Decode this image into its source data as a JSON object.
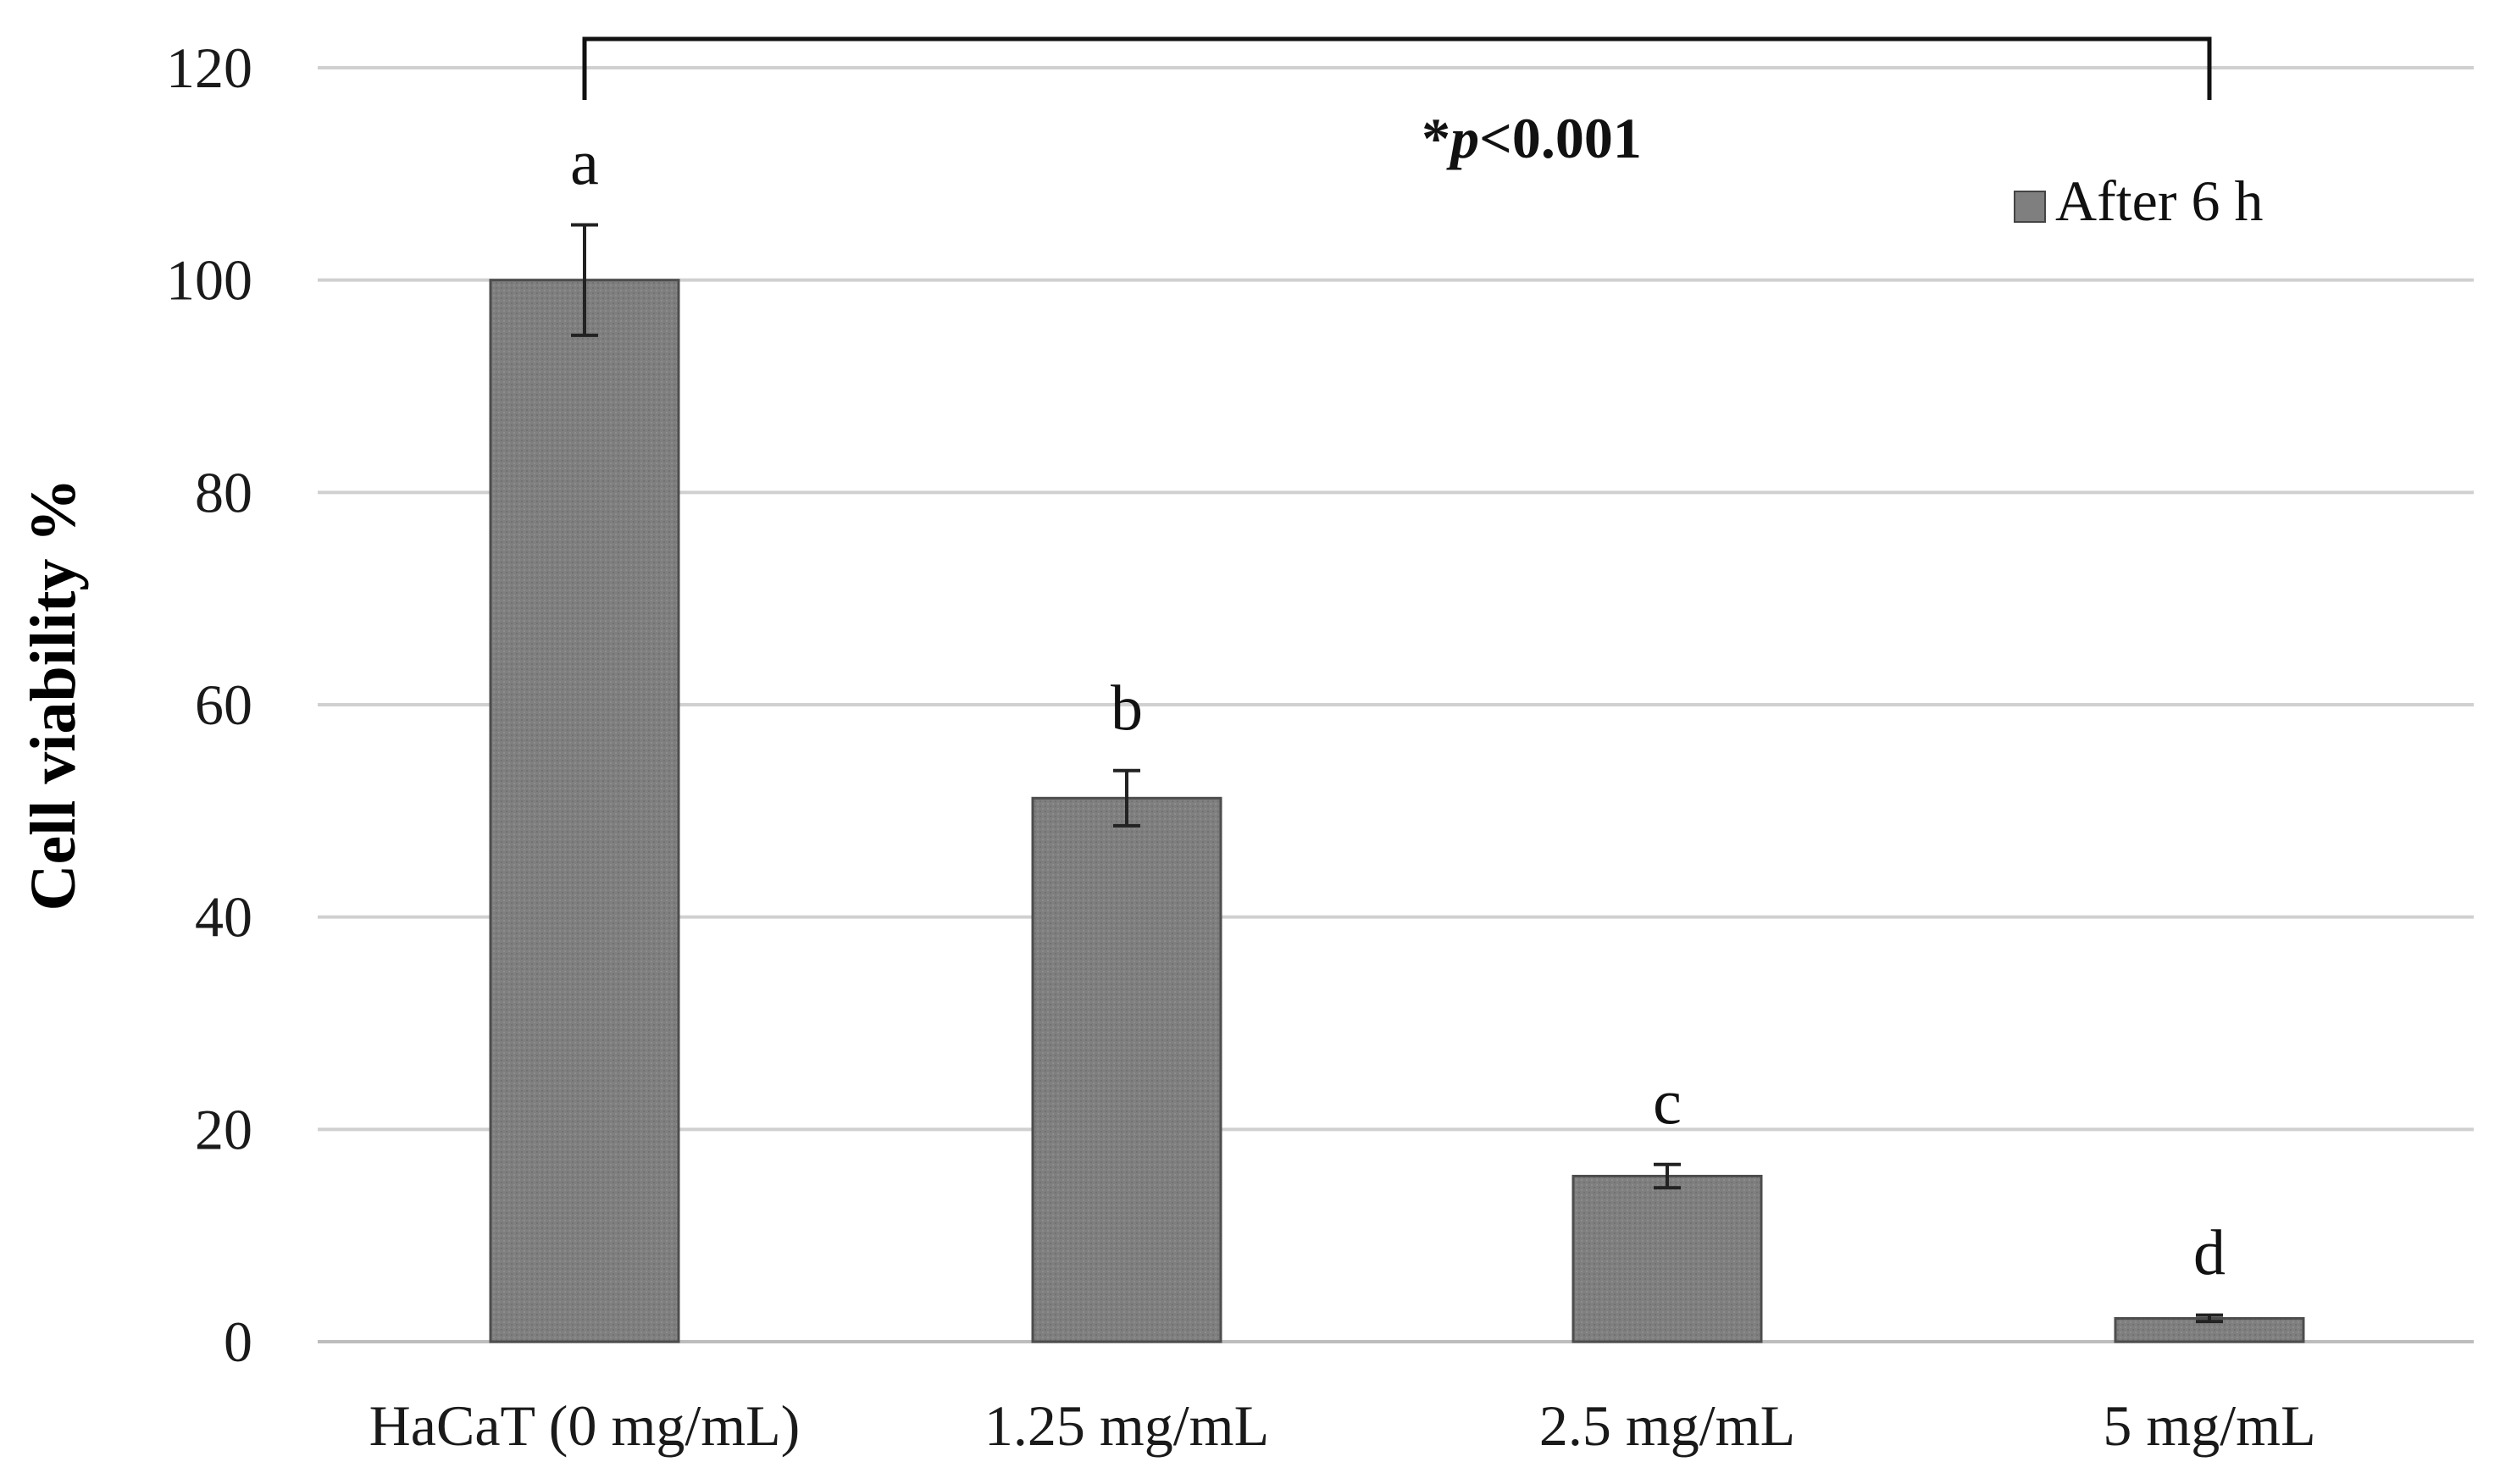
{
  "chart_data": {
    "type": "bar",
    "categories": [
      "HaCaT (0 mg/mL)",
      "1.25 mg/mL",
      "2.5 mg/mL",
      "5 mg/mL"
    ],
    "series": [
      {
        "name": "After 6 h",
        "values": [
          100,
          51.2,
          15.6,
          2.2
        ],
        "errors": [
          5.2,
          2.6,
          1.1,
          0.3
        ],
        "color": "#7f7f7f"
      }
    ],
    "significance_letters": [
      "a",
      "b",
      "c",
      "d"
    ],
    "annotation": {
      "prefix": "*",
      "italic": "p",
      "suffix": "<0.001"
    },
    "xlabel": "",
    "ylabel": "Cell viability %",
    "ylim": [
      0,
      120
    ],
    "yticks": [
      0,
      20,
      40,
      60,
      80,
      100,
      120
    ],
    "grid": true,
    "legend_position": "top-right"
  }
}
